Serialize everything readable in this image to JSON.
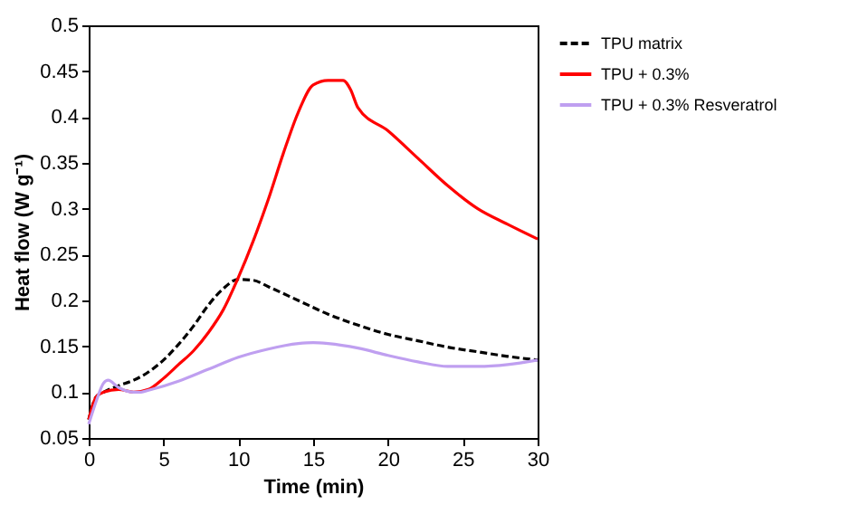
{
  "chart_data": {
    "type": "line",
    "xlabel": "Time (min)",
    "ylabel": "Heat flow (W g⁻¹)",
    "xlim": [
      0,
      30
    ],
    "ylim": [
      0.05,
      0.5
    ],
    "xticks": [
      0,
      5,
      10,
      15,
      20,
      25,
      30
    ],
    "yticks": [
      0.05,
      0.1,
      0.15,
      0.2,
      0.25,
      0.3,
      0.35,
      0.4,
      0.45,
      0.5
    ],
    "grid": false,
    "legend": "right",
    "marker": "none",
    "series": [
      {
        "name": "TPU matrix",
        "color": "#000000",
        "line_style": "dashed",
        "x": [
          0,
          0.5,
          1,
          2,
          3,
          4,
          5,
          6,
          7,
          8,
          9,
          10,
          11,
          12,
          14,
          16,
          18,
          20,
          22,
          24,
          26,
          28,
          30
        ],
        "values": [
          0.07,
          0.095,
          0.1,
          0.107,
          0.113,
          0.122,
          0.135,
          0.152,
          0.172,
          0.195,
          0.213,
          0.223,
          0.222,
          0.215,
          0.2,
          0.185,
          0.173,
          0.163,
          0.156,
          0.149,
          0.144,
          0.139,
          0.135
        ]
      },
      {
        "name": "TPU + 0.3%",
        "color": "#ff0000",
        "line_style": "solid",
        "x": [
          0,
          0.5,
          1,
          2,
          3,
          4,
          5,
          6,
          7,
          8,
          9,
          10,
          11,
          12,
          13,
          14,
          15,
          16,
          17,
          17.5,
          18,
          20,
          22,
          24,
          26,
          28,
          30
        ],
        "values": [
          0.07,
          0.095,
          0.1,
          0.103,
          0.1,
          0.103,
          0.115,
          0.13,
          0.145,
          0.165,
          0.19,
          0.225,
          0.265,
          0.31,
          0.36,
          0.405,
          0.435,
          0.44,
          0.44,
          0.43,
          0.41,
          0.385,
          0.355,
          0.325,
          0.3,
          0.283,
          0.267
        ]
      },
      {
        "name": "TPU + 0.3% Resveratrol",
        "color": "#bf9ff0",
        "line_style": "solid",
        "x": [
          0,
          0.5,
          1,
          1.3,
          2,
          3,
          3.5,
          4,
          6,
          8,
          10,
          12,
          14,
          15,
          16,
          18,
          20,
          22,
          24,
          26,
          28,
          30
        ],
        "values": [
          0.065,
          0.09,
          0.11,
          0.113,
          0.105,
          0.1,
          0.1,
          0.102,
          0.112,
          0.125,
          0.138,
          0.147,
          0.153,
          0.154,
          0.153,
          0.148,
          0.14,
          0.133,
          0.128,
          0.128,
          0.13,
          0.135
        ]
      }
    ]
  }
}
